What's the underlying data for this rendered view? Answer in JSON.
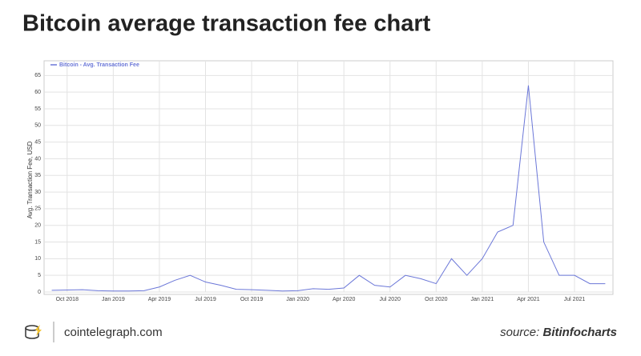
{
  "chart_data": {
    "type": "line",
    "title": "Bitcoin average transaction fee chart",
    "y_label": "Avg. Transaction Fee, USD",
    "x": [
      "Sep 2018",
      "Oct 2018",
      "Nov 2018",
      "Dec 2018",
      "Jan 2019",
      "Feb 2019",
      "Mar 2019",
      "Apr 2019",
      "May 2019",
      "Jun 2019",
      "Jul 2019",
      "Aug 2019",
      "Sep 2019",
      "Oct 2019",
      "Nov 2019",
      "Dec 2019",
      "Jan 2020",
      "Feb 2020",
      "Mar 2020",
      "Apr 2020",
      "May 2020",
      "Jun 2020",
      "Jul 2020",
      "Aug 2020",
      "Sep 2020",
      "Oct 2020",
      "Nov 2020",
      "Dec 2020",
      "Jan 2021",
      "Feb 2021",
      "Mar 2021",
      "Apr 2021",
      "May 2021",
      "Jun 2021",
      "Jul 2021",
      "Aug 2021",
      "Sep 2021"
    ],
    "series": [
      {
        "name": "Bitcoin - Avg. Transaction Fee",
        "color": "#6b77d8",
        "values": [
          0.5,
          0.6,
          0.7,
          0.4,
          0.3,
          0.3,
          0.4,
          1.5,
          3.5,
          5,
          3,
          2,
          0.8,
          0.7,
          0.5,
          0.3,
          0.4,
          1,
          0.8,
          1.2,
          5,
          2,
          1.5,
          5,
          4,
          2.5,
          10,
          5,
          10,
          18,
          20,
          62,
          15,
          5,
          5,
          2.5,
          2.5
        ]
      }
    ],
    "xticks": [
      "Oct 2018",
      "Jan 2019",
      "Apr 2019",
      "Jul 2019",
      "Oct 2019",
      "Jan 2020",
      "Apr 2020",
      "Jul 2020",
      "Oct 2020",
      "Jan 2021",
      "Apr 2021",
      "Jul 2021"
    ],
    "ylim": [
      0,
      67
    ],
    "yticks": [
      0,
      5,
      10,
      15,
      20,
      25,
      30,
      35,
      40,
      45,
      50,
      55,
      60,
      65
    ],
    "grid": true,
    "legend": "top-left"
  },
  "footer": {
    "site": "cointelegraph.com",
    "source_prefix": "source:",
    "source": "Bitinfocharts"
  }
}
